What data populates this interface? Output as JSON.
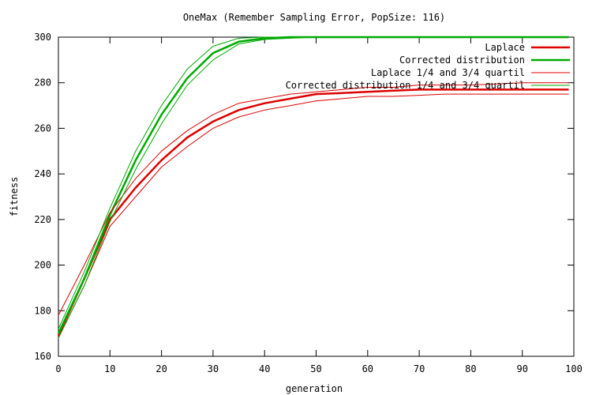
{
  "chart_data": {
    "type": "line",
    "title": "OneMax (Remember Sampling Error, PopSize: 116)",
    "xlabel": "generation",
    "ylabel": "fitness",
    "xlim": [
      0,
      100
    ],
    "ylim": [
      160,
      300
    ],
    "xticks": [
      0,
      10,
      20,
      30,
      40,
      50,
      60,
      70,
      80,
      90,
      100
    ],
    "yticks": [
      160,
      180,
      200,
      220,
      240,
      260,
      280,
      300
    ],
    "grid": false,
    "legend_position": "top-right",
    "x": [
      0,
      5,
      10,
      15,
      20,
      25,
      30,
      35,
      40,
      45,
      50,
      55,
      60,
      65,
      70,
      75,
      80,
      85,
      90,
      95,
      99
    ],
    "series": [
      {
        "name": "Laplace",
        "color": "#dd0000",
        "style": "thick",
        "values": [
          169,
          194,
          220,
          234,
          246,
          256,
          263,
          268,
          271,
          273,
          275,
          275.5,
          276,
          276.5,
          277,
          277,
          277,
          277,
          277,
          277,
          277
        ]
      },
      {
        "name": "Corrected distribution",
        "color": "#00aa00",
        "style": "thick",
        "values": [
          170,
          194,
          222,
          246,
          266,
          282,
          293,
          298,
          299.5,
          300,
          300,
          300,
          300,
          300,
          300,
          300,
          300,
          300,
          300,
          300,
          300
        ]
      },
      {
        "name": "Laplace 1/4 and 3/4 quartil",
        "color": "#dd0000",
        "style": "thin",
        "lower": [
          168,
          191,
          217,
          230,
          243,
          252,
          260,
          265,
          268,
          270,
          272,
          273,
          274,
          274,
          274.5,
          275,
          275,
          275,
          275,
          275,
          275
        ],
        "upper": [
          178,
          200,
          223,
          238,
          250,
          259,
          266,
          271,
          273,
          275,
          276,
          277,
          278,
          278,
          279,
          279,
          279,
          279.5,
          280,
          280,
          280
        ]
      },
      {
        "name": "Corrected distribution 1/4 and 3/4 quartil",
        "color": "#00aa00",
        "style": "thin",
        "lower": [
          168,
          191,
          219,
          242,
          262,
          279,
          290,
          297,
          299,
          299.5,
          300,
          300,
          300,
          300,
          300,
          300,
          300,
          300,
          300,
          300,
          300
        ],
        "upper": [
          172,
          197,
          225,
          250,
          270,
          286,
          296,
          299.5,
          300,
          300,
          300,
          300,
          300,
          300,
          300,
          300,
          300,
          300,
          300,
          300,
          300
        ]
      }
    ]
  }
}
